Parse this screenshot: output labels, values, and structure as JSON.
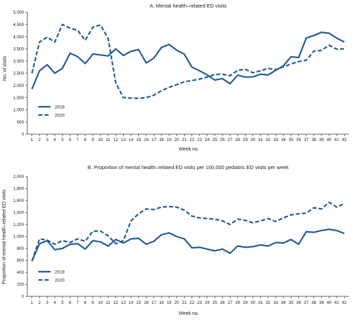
{
  "chart_data": [
    {
      "type": "line",
      "title": "A. Mental health–related ED visits",
      "xlabel": "Week no.",
      "ylabel": "No. of visits",
      "x": [
        1,
        2,
        3,
        4,
        5,
        6,
        7,
        8,
        9,
        10,
        11,
        12,
        13,
        14,
        15,
        16,
        17,
        18,
        19,
        20,
        21,
        22,
        23,
        24,
        25,
        26,
        27,
        28,
        29,
        30,
        31,
        32,
        33,
        34,
        35,
        36,
        37,
        38,
        39,
        40,
        41,
        42
      ],
      "yticks": [
        "0",
        "500",
        "1,000",
        "1,500",
        "2,000",
        "2,500",
        "3,000",
        "3,500",
        "4,000",
        "4,500",
        "5,000"
      ],
      "ylim": [
        0,
        5000
      ],
      "grid": false,
      "legend_position": "bottom-left",
      "series": [
        {
          "name": "2019",
          "style": "solid",
          "color": "#1f5a96",
          "values": [
            1850,
            2600,
            2850,
            2500,
            2700,
            3320,
            3180,
            2900,
            3290,
            3250,
            3210,
            3500,
            3230,
            3400,
            3470,
            2920,
            3120,
            3560,
            3680,
            3450,
            3280,
            2750,
            2600,
            2430,
            2220,
            2280,
            2070,
            2420,
            2340,
            2350,
            2460,
            2430,
            2620,
            2800,
            3180,
            3140,
            3940,
            4050,
            4180,
            4140,
            3940,
            3780
          ]
        },
        {
          "name": "2020",
          "style": "dashed",
          "color": "#1f5a96",
          "values": [
            2500,
            3780,
            3980,
            3780,
            4500,
            4350,
            4260,
            3850,
            4390,
            4480,
            3930,
            2100,
            1500,
            1480,
            1470,
            1500,
            1600,
            1780,
            1920,
            2030,
            2150,
            2200,
            2260,
            2340,
            2450,
            2460,
            2400,
            2620,
            2660,
            2520,
            2600,
            2700,
            2650,
            2760,
            2880,
            2980,
            3030,
            3410,
            3440,
            3650,
            3490,
            3500
          ]
        }
      ]
    },
    {
      "type": "line",
      "title": "B. Proportion of mental health–related ED visits per 100,000 pediatric ED visits per week",
      "xlabel": "Week no.",
      "ylabel": "Proportion of mental health–related ED visits",
      "x": [
        1,
        2,
        3,
        4,
        5,
        6,
        7,
        8,
        9,
        10,
        11,
        12,
        13,
        14,
        15,
        16,
        17,
        18,
        19,
        20,
        21,
        22,
        23,
        24,
        25,
        26,
        27,
        28,
        29,
        30,
        31,
        32,
        33,
        34,
        35,
        36,
        37,
        38,
        39,
        40,
        41,
        42
      ],
      "yticks": [
        "0",
        "200",
        "400",
        "600",
        "800",
        "1,000",
        "1,200",
        "1,400",
        "1,600",
        "1,800",
        "2,000"
      ],
      "ylim": [
        0,
        2000
      ],
      "grid": false,
      "legend_position": "bottom-left",
      "series": [
        {
          "name": "2019",
          "style": "solid",
          "color": "#1f5a96",
          "values": [
            590,
            880,
            930,
            780,
            800,
            870,
            880,
            790,
            930,
            910,
            840,
            950,
            890,
            960,
            970,
            870,
            920,
            1030,
            1060,
            1000,
            960,
            810,
            820,
            790,
            760,
            790,
            720,
            840,
            820,
            830,
            860,
            840,
            900,
            890,
            950,
            870,
            1080,
            1070,
            1100,
            1120,
            1100,
            1050
          ]
        },
        {
          "name": "2020",
          "style": "dashed",
          "color": "#1f5a96",
          "values": [
            590,
            960,
            940,
            870,
            930,
            900,
            960,
            920,
            1090,
            1090,
            1010,
            880,
            930,
            1260,
            1380,
            1460,
            1450,
            1490,
            1500,
            1490,
            1440,
            1340,
            1310,
            1300,
            1290,
            1260,
            1200,
            1290,
            1270,
            1230,
            1260,
            1300,
            1250,
            1310,
            1360,
            1380,
            1390,
            1480,
            1460,
            1570,
            1490,
            1550
          ]
        }
      ]
    }
  ]
}
